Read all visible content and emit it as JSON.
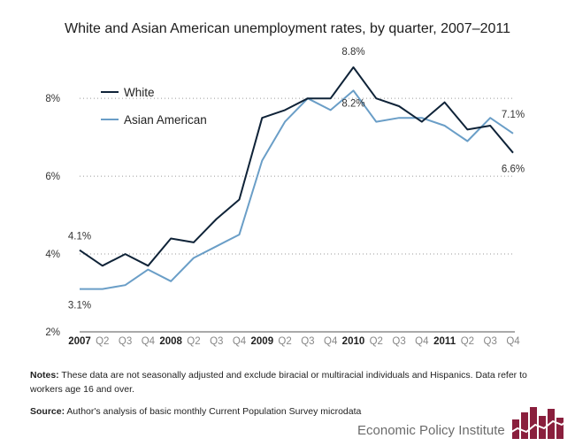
{
  "chart_data": {
    "type": "line",
    "title": "White and Asian American unemployment rates, by quarter, 2007–2011",
    "x": [
      "2007",
      "Q2",
      "Q3",
      "Q4",
      "2008",
      "Q2",
      "Q3",
      "Q4",
      "2009",
      "Q2",
      "Q3",
      "Q4",
      "2010",
      "Q2",
      "Q3",
      "Q4",
      "2011",
      "Q2",
      "Q3",
      "Q4"
    ],
    "year_ticks": [
      "2007",
      "2008",
      "2009",
      "2010",
      "2011"
    ],
    "ylim": [
      2,
      8.8
    ],
    "yticks": [
      2,
      4,
      6,
      8
    ],
    "ytick_labels": [
      "2%",
      "4%",
      "6%",
      "8%"
    ],
    "grid": "horizontal-dotted",
    "legend_position": "top-left",
    "series": [
      {
        "name": "White",
        "color": "#0f2338",
        "values": [
          4.1,
          3.7,
          4.0,
          3.7,
          4.4,
          4.3,
          4.9,
          5.4,
          7.5,
          7.7,
          8.0,
          8.0,
          8.8,
          8.0,
          7.8,
          7.4,
          7.9,
          7.2,
          7.3,
          6.6
        ]
      },
      {
        "name": "Asian American",
        "color": "#6a9ec7",
        "values": [
          3.1,
          3.1,
          3.2,
          3.6,
          3.3,
          3.9,
          4.2,
          4.5,
          6.4,
          7.4,
          8.0,
          7.7,
          8.2,
          7.4,
          7.5,
          7.5,
          7.3,
          6.9,
          7.5,
          7.1
        ]
      }
    ],
    "annotations": [
      {
        "text": "4.1%",
        "series": 0,
        "index": 0
      },
      {
        "text": "3.1%",
        "series": 1,
        "index": 0
      },
      {
        "text": "8.8%",
        "series": 0,
        "index": 12
      },
      {
        "text": "8.2%",
        "series": 1,
        "index": 12
      },
      {
        "text": "7.1%",
        "series": 1,
        "index": 19
      },
      {
        "text": "6.6%",
        "series": 0,
        "index": 19
      }
    ]
  },
  "notes": {
    "notes_label": "Notes:",
    "notes_text": " These data are not seasonally adjusted and exclude biracial or multiracial individuals and Hispanics. Data refer to workers age 16 and over.",
    "source_label": "Source:",
    "source_text": " Author's analysis of basic monthly Current Population Survey microdata"
  },
  "brand": {
    "name": "Economic Policy Institute",
    "logo_color": "#8a1f3d"
  }
}
